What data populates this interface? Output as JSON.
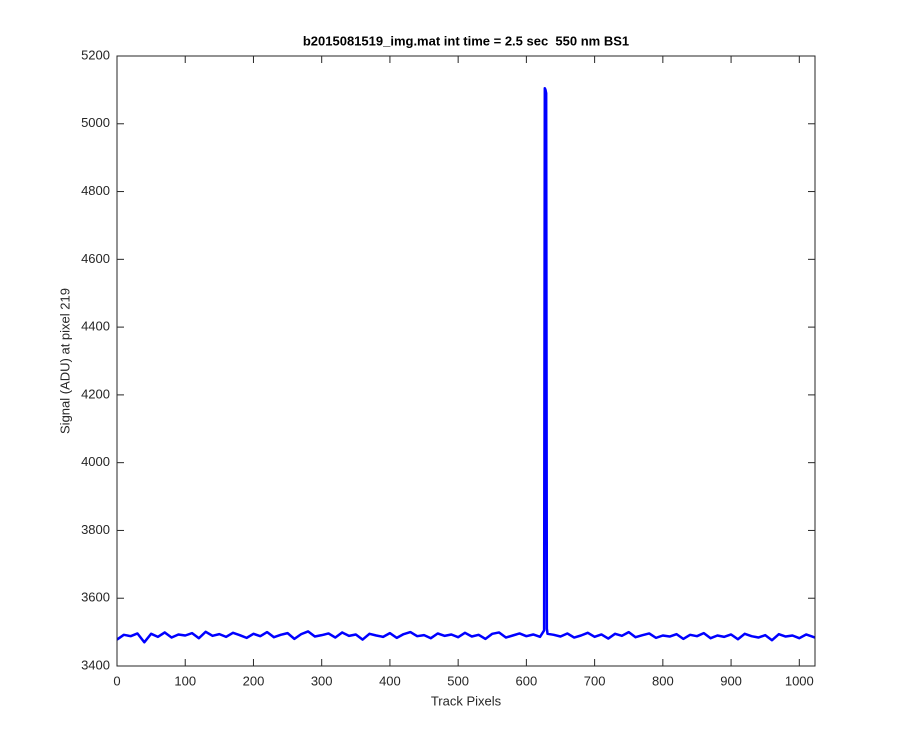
{
  "chart_data": {
    "type": "line",
    "title": "b2015081519_img.mat int time = 2.5 sec  550 nm BS1",
    "x_label": "Track Pixels",
    "y_label": "Signal (ADU) at pixel 219",
    "color": "#0000ff",
    "grid": false,
    "xlim": [
      0,
      1023
    ],
    "xticks": [
      0,
      100,
      200,
      300,
      400,
      500,
      600,
      700,
      800,
      900,
      1000
    ],
    "ylim": [
      3400,
      5200
    ],
    "yticks": [
      3400,
      3600,
      3800,
      4000,
      4200,
      4400,
      4600,
      4800,
      5000,
      5200
    ],
    "x": [
      0,
      10,
      20,
      30,
      40,
      50,
      60,
      70,
      80,
      90,
      100,
      110,
      120,
      130,
      140,
      150,
      160,
      170,
      180,
      190,
      200,
      210,
      220,
      230,
      240,
      250,
      260,
      270,
      280,
      290,
      300,
      310,
      320,
      330,
      340,
      350,
      360,
      370,
      380,
      390,
      400,
      410,
      420,
      430,
      440,
      450,
      460,
      470,
      480,
      490,
      500,
      510,
      520,
      530,
      540,
      550,
      560,
      570,
      580,
      590,
      600,
      610,
      620,
      626,
      627,
      628,
      629,
      630,
      631,
      640,
      650,
      660,
      670,
      680,
      690,
      700,
      710,
      720,
      730,
      740,
      750,
      760,
      770,
      780,
      790,
      800,
      810,
      820,
      830,
      840,
      850,
      860,
      870,
      880,
      890,
      900,
      910,
      920,
      930,
      940,
      950,
      960,
      970,
      980,
      990,
      1000,
      1010,
      1020,
      1023
    ],
    "values": [
      3478,
      3492,
      3488,
      3496,
      3470,
      3495,
      3486,
      3499,
      3484,
      3493,
      3490,
      3497,
      3482,
      3501,
      3489,
      3494,
      3486,
      3498,
      3491,
      3483,
      3495,
      3488,
      3500,
      3485,
      3492,
      3497,
      3480,
      3494,
      3502,
      3487,
      3491,
      3496,
      3484,
      3499,
      3489,
      3493,
      3478,
      3495,
      3490,
      3486,
      3497,
      3483,
      3494,
      3500,
      3488,
      3491,
      3482,
      3496,
      3489,
      3493,
      3485,
      3498,
      3487,
      3492,
      3480,
      3495,
      3499,
      3484,
      3490,
      3496,
      3488,
      3493,
      3486,
      3505,
      5105,
      5100,
      5090,
      3510,
      3495,
      3492,
      3487,
      3496,
      3484,
      3490,
      3498,
      3486,
      3493,
      3481,
      3495,
      3489,
      3500,
      3485,
      3491,
      3496,
      3483,
      3490,
      3487,
      3494,
      3480,
      3492,
      3488,
      3497,
      3482,
      3490,
      3486,
      3493,
      3479,
      3495,
      3488,
      3484,
      3491,
      3476,
      3494,
      3487,
      3490,
      3482,
      3493,
      3486,
      3484
    ]
  }
}
